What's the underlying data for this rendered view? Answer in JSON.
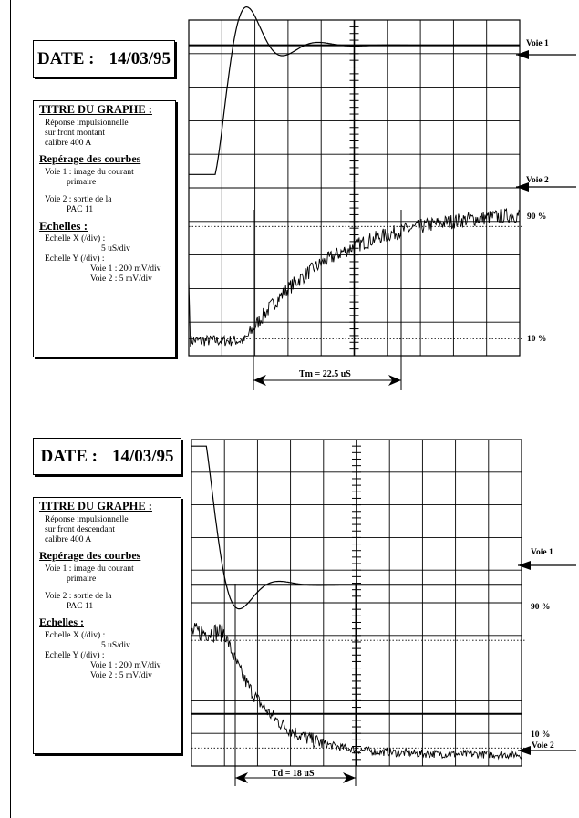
{
  "charts": [
    {
      "date_label": "DATE :",
      "date_value": "14/03/95",
      "title_heading": "TITRE DU GRAPHE :",
      "title_lines": [
        "Réponse impulsionnelle",
        "sur front montant",
        "calibre 400 A"
      ],
      "reperage_heading": "Repérage des courbes",
      "voie1_desc": [
        "Voie 1 : image du courant",
        "primaire"
      ],
      "voie2_desc": [
        "Voie 2 : sortie de la",
        "PAC 11"
      ],
      "echelles_heading": "Echelles :",
      "echelle_x_label": "Echelle X (/div) :",
      "echelle_x_value": "5 uS/div",
      "echelle_y_label": "Echelle Y (/div) :",
      "echelle_y_voie1": "Voie 1 : 200 mV/div",
      "echelle_y_voie2": "Voie 2 : 5 mV/div",
      "voie1_marker": "Voie 1",
      "voie2_marker": "Voie 2",
      "level_90": "90 %",
      "level_10": "10 %",
      "measurement": "Tm = 22.5 uS"
    },
    {
      "date_label": "DATE :",
      "date_value": "14/03/95",
      "title_heading": "TITRE DU GRAPHE :",
      "title_lines": [
        "Réponse impulsionnelle",
        "sur front descendant",
        "calibre 400 A"
      ],
      "reperage_heading": "Repérage des courbes",
      "voie1_desc": [
        "Voie 1 : image du courant",
        "primaire"
      ],
      "voie2_desc": [
        "Voie 2 : sortie de la",
        "PAC 11"
      ],
      "echelles_heading": "Echelles :",
      "echelle_x_label": "Echelle X (/div) :",
      "echelle_x_value": "5 uS/div",
      "echelle_y_label": "Echelle Y (/div) :",
      "echelle_y_voie1": "Voie 1 : 200 mV/div",
      "echelle_y_voie2": "Voie 2 : 5 mV/div",
      "voie1_marker": "Voie 1",
      "voie2_marker": "Voie 2",
      "level_90": "90 %",
      "level_10": "10 %",
      "measurement": "Td = 18 uS"
    }
  ],
  "chart_data": [
    {
      "type": "line",
      "grid": true,
      "x_divisions": 10,
      "y_divisions": 10,
      "x_scale": "5 uS/div",
      "series": [
        {
          "name": "Voie 1",
          "scale": "200 mV/div",
          "description": "image du courant primaire",
          "shape": "step_up_overshoot",
          "baseline_div": 5.4,
          "final_div": 9.25,
          "peak_div": 10.8
        },
        {
          "name": "Voie 2",
          "scale": "5 mV/div",
          "description": "sortie de la PAC 11",
          "shape": "exponential_rise_noisy",
          "baseline_div": 0.45,
          "final_div": 4.35
        }
      ],
      "levels": [
        {
          "label": "90 %",
          "div": 3.85
        },
        {
          "label": "10 %",
          "div": 0.5
        }
      ],
      "measurement": {
        "label": "Tm = 22.5 uS",
        "value_us": 22.5,
        "from_div": 2.0,
        "to_div": 6.5
      }
    },
    {
      "type": "line",
      "grid": true,
      "x_divisions": 10,
      "y_divisions": 10,
      "x_scale": "5 uS/div",
      "series": [
        {
          "name": "Voie 1",
          "scale": "200 mV/div",
          "description": "image du courant primaire",
          "shape": "step_down_undershoot",
          "baseline_div": 5.55,
          "start_div": 9.8,
          "trough_div": 5.1
        },
        {
          "name": "Voie 2",
          "scale": "5 mV/div",
          "description": "sortie de la PAC 11",
          "shape": "exponential_fall_noisy",
          "start_div": 4.1,
          "final_div": 0.35
        }
      ],
      "levels": [
        {
          "label": "90 %",
          "div": 3.85
        },
        {
          "label": "10 %",
          "div": 0.55
        }
      ],
      "measurement": {
        "label": "Td = 18 uS",
        "value_us": 18,
        "from_div": 1.35,
        "to_div": 4.95
      }
    }
  ]
}
